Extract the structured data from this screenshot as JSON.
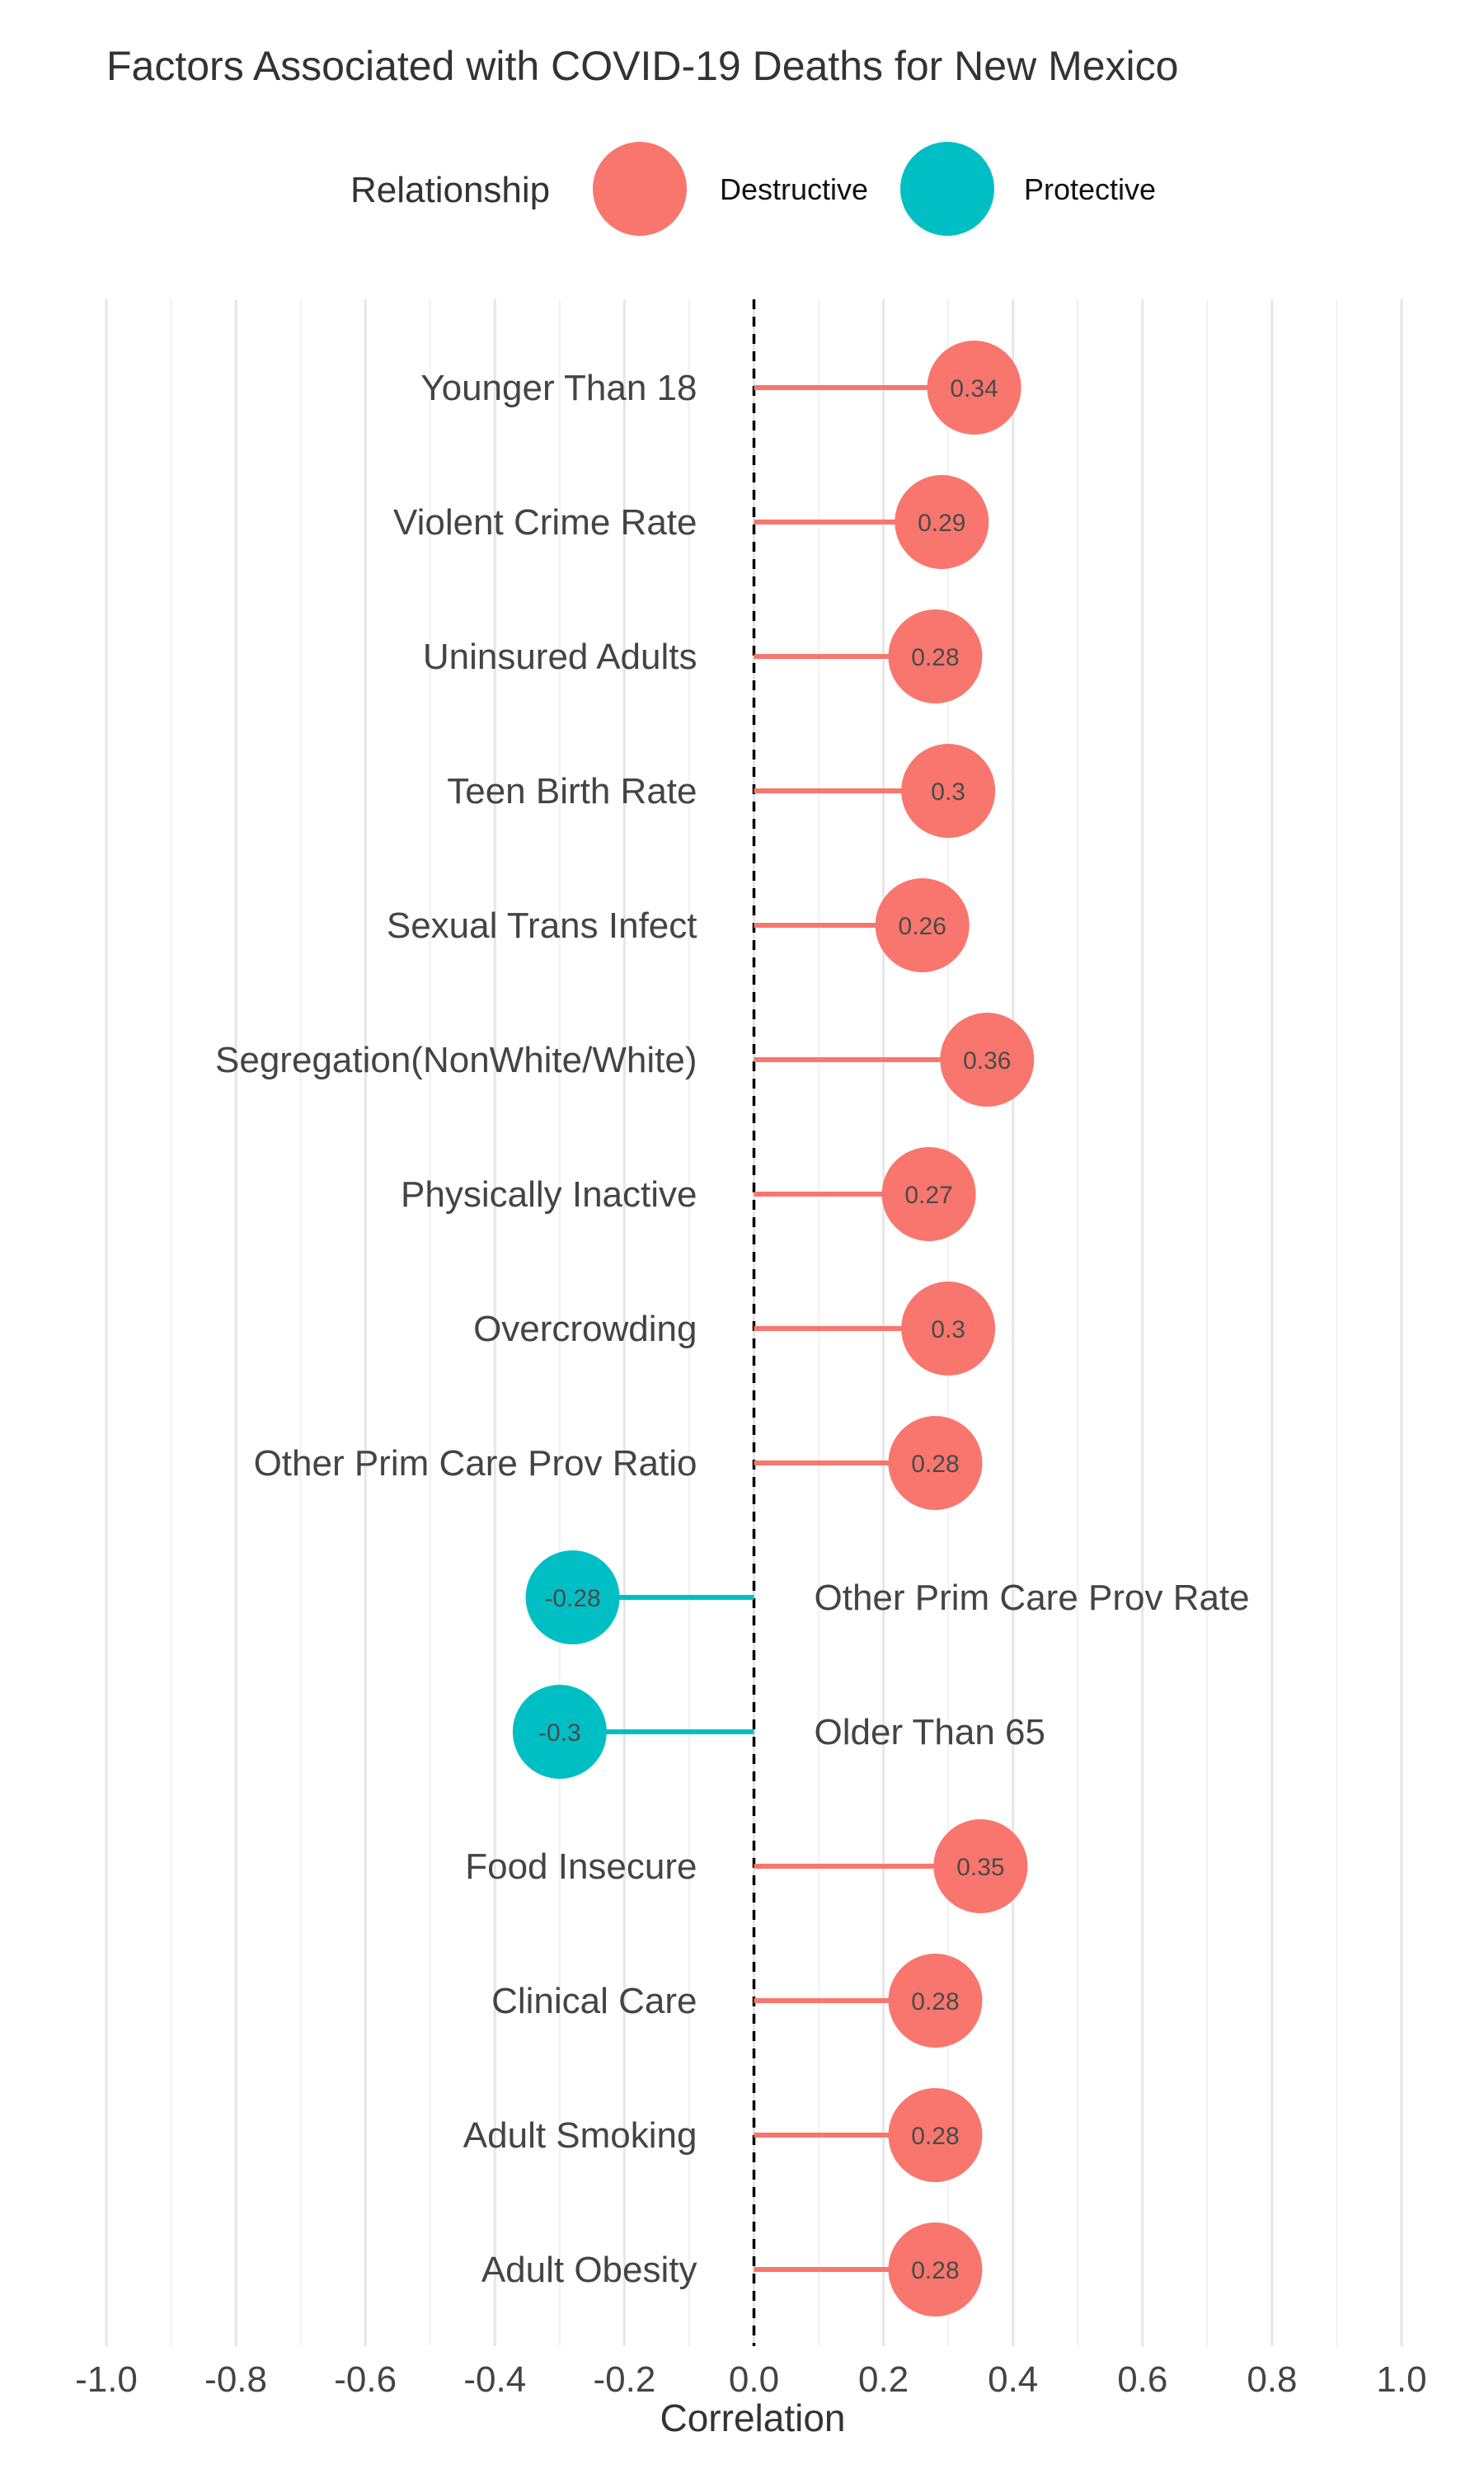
{
  "chart_data": {
    "type": "lollipop",
    "title": "Factors Associated with COVID-19 Deaths for New Mexico",
    "xlabel": "Correlation",
    "ylabel": "",
    "xlim": [
      -1.0,
      1.0
    ],
    "x_ticks": [
      -1.0,
      -0.8,
      -0.6,
      -0.4,
      -0.2,
      0.0,
      0.2,
      0.4,
      0.6,
      0.8,
      1.0
    ],
    "x_tick_labels": [
      "-1.0",
      "-0.8",
      "-0.6",
      "-0.4",
      "-0.2",
      "0.0",
      "0.2",
      "0.4",
      "0.6",
      "0.8",
      "1.0"
    ],
    "grid": "vertical",
    "reference_line": {
      "x": 0.0,
      "style": "dashed",
      "color": "#000000"
    },
    "legend": {
      "title": "Relationship",
      "placement": "top",
      "entries": [
        {
          "label": "Destructive",
          "color": "#F8766D"
        },
        {
          "label": "Protective",
          "color": "#00BFC4"
        }
      ]
    },
    "colors": {
      "Destructive": "#F8766D",
      "Protective": "#00BFC4"
    },
    "points": [
      {
        "category": "Younger Than 18",
        "value": 0.34,
        "value_label": "0.34",
        "relationship": "Destructive"
      },
      {
        "category": "Violent Crime Rate",
        "value": 0.29,
        "value_label": "0.29",
        "relationship": "Destructive"
      },
      {
        "category": "Uninsured Adults",
        "value": 0.28,
        "value_label": "0.28",
        "relationship": "Destructive"
      },
      {
        "category": "Teen Birth Rate",
        "value": 0.3,
        "value_label": "0.3",
        "relationship": "Destructive"
      },
      {
        "category": "Sexual Trans Infect",
        "value": 0.26,
        "value_label": "0.26",
        "relationship": "Destructive"
      },
      {
        "category": "Segregation(NonWhite/White)",
        "value": 0.36,
        "value_label": "0.36",
        "relationship": "Destructive"
      },
      {
        "category": "Physically Inactive",
        "value": 0.27,
        "value_label": "0.27",
        "relationship": "Destructive"
      },
      {
        "category": "Overcrowding",
        "value": 0.3,
        "value_label": "0.3",
        "relationship": "Destructive"
      },
      {
        "category": "Other Prim Care Prov Ratio",
        "value": 0.28,
        "value_label": "0.28",
        "relationship": "Destructive"
      },
      {
        "category": "Other Prim Care Prov Rate",
        "value": -0.28,
        "value_label": "-0.28",
        "relationship": "Protective"
      },
      {
        "category": "Older Than 65",
        "value": -0.3,
        "value_label": "-0.3",
        "relationship": "Protective"
      },
      {
        "category": "Food Insecure",
        "value": 0.35,
        "value_label": "0.35",
        "relationship": "Destructive"
      },
      {
        "category": "Clinical Care",
        "value": 0.28,
        "value_label": "0.28",
        "relationship": "Destructive"
      },
      {
        "category": "Adult Smoking",
        "value": 0.28,
        "value_label": "0.28",
        "relationship": "Destructive"
      },
      {
        "category": "Adult Obesity",
        "value": 0.28,
        "value_label": "0.28",
        "relationship": "Destructive"
      }
    ]
  }
}
